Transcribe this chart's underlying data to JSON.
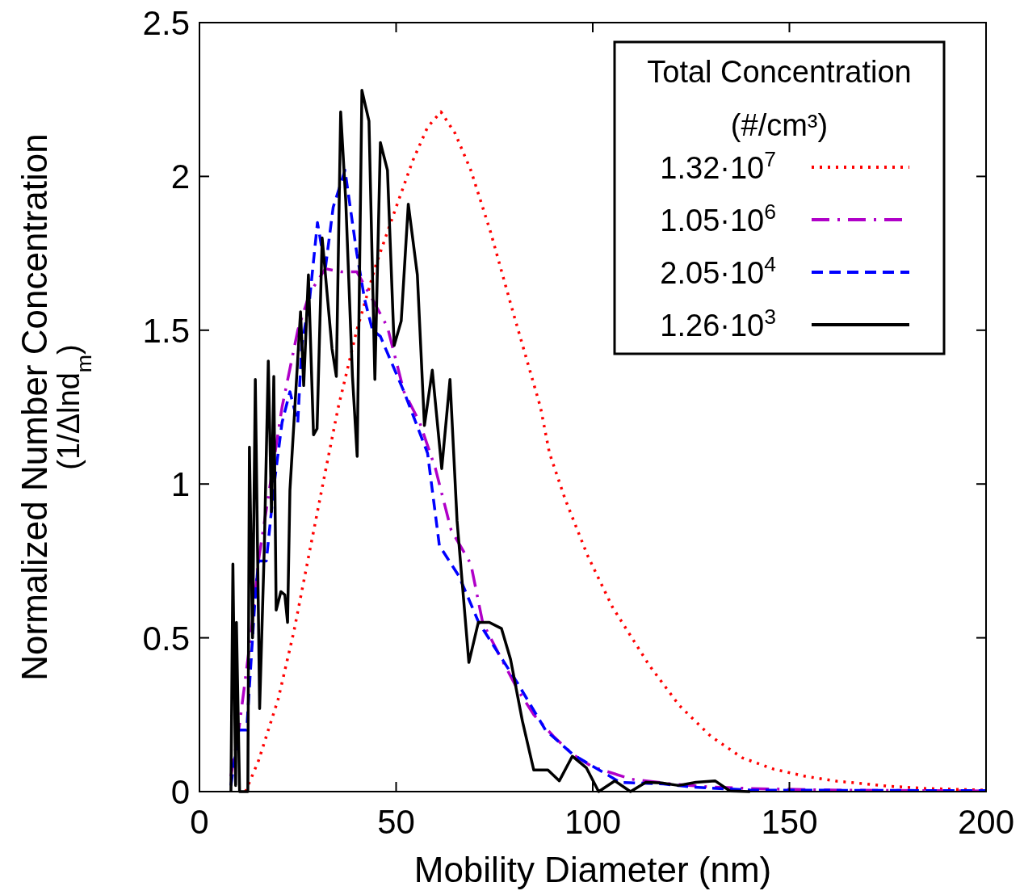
{
  "chart_data": {
    "type": "line",
    "xlabel": "Mobility Diameter (nm)",
    "ylabel": "Normalized Number Concentration (1/Δlnd$_{m}$)",
    "legend_title": "Total Concentration (#/cm³)",
    "legend": "top right",
    "grid": false,
    "xlim": [
      0,
      200
    ],
    "ylim": [
      0,
      2.5
    ],
    "xticks": [
      0,
      50,
      100,
      150,
      200
    ],
    "yticks": [
      0,
      0.5,
      1,
      1.5,
      2,
      2.5
    ],
    "series": [
      {
        "name": "1.32·10$^{7}$",
        "color": "#ff0000",
        "line_style": "dotted",
        "x": [
          11.7,
          15,
          20,
          24,
          28.3,
          32,
          35.3,
          40,
          44.8,
          50,
          54.2,
          58,
          61.4,
          65,
          69,
          74,
          79.7,
          86.7,
          89,
          93,
          98.6,
          105,
          114.4,
          122,
          130,
          138,
          146,
          154,
          162,
          175,
          185,
          200
        ],
        "values": [
          0,
          0.1,
          0.3,
          0.52,
          0.8,
          1.04,
          1.25,
          1.5,
          1.71,
          1.9,
          2.05,
          2.16,
          2.21,
          2.14,
          2.02,
          1.82,
          1.56,
          1.25,
          1.1,
          0.95,
          0.77,
          0.6,
          0.41,
          0.28,
          0.18,
          0.11,
          0.073,
          0.05,
          0.034,
          0.018,
          0.01,
          0.005
        ]
      },
      {
        "name": "1.05·10$^{6}$",
        "color": "#b000c8",
        "line_style": "dashdot",
        "x": [
          8,
          10,
          13,
          15,
          18,
          21,
          25,
          28,
          32,
          36,
          40,
          44,
          47.8,
          52,
          56,
          60,
          64,
          69,
          72,
          76,
          81,
          85,
          90,
          95,
          100,
          110,
          120,
          130,
          140,
          160,
          200
        ],
        "values": [
          0.05,
          0.2,
          0.5,
          0.75,
          1,
          1.25,
          1.5,
          1.62,
          1.7,
          1.69,
          1.69,
          1.6,
          1.51,
          1.3,
          1.2,
          1.05,
          0.85,
          0.74,
          0.55,
          0.45,
          0.33,
          0.25,
          0.18,
          0.12,
          0.08,
          0.04,
          0.025,
          0.015,
          0.01,
          0.005,
          0.002
        ]
      },
      {
        "name": "2.05·10$^{4}$",
        "color": "#0000ff",
        "line_style": "dashed",
        "x": [
          8,
          10,
          12,
          14,
          15,
          17,
          19,
          21,
          23,
          25,
          26,
          28,
          30,
          32,
          34,
          37,
          40,
          42,
          44,
          46,
          52,
          58,
          61,
          66,
          71,
          76,
          81,
          88,
          95,
          103,
          107,
          118,
          125,
          140,
          200
        ],
        "values": [
          0.02,
          0.2,
          0.2,
          0.6,
          0.75,
          0.75,
          1,
          1.2,
          1.3,
          1.2,
          1.45,
          1.6,
          1.85,
          1.7,
          1.9,
          2.02,
          1.75,
          1.6,
          1.5,
          1.48,
          1.3,
          1.1,
          0.8,
          0.7,
          0.55,
          0.45,
          0.35,
          0.2,
          0.12,
          0.06,
          0.03,
          0.025,
          0.015,
          0.005,
          0.003
        ]
      },
      {
        "name": "1.26·10$^{3}$",
        "color": "#000000",
        "line_style": "solid",
        "x": [
          8,
          8.5,
          9.2,
          9.4,
          10.2,
          12.3,
          12.7,
          13.5,
          14.2,
          15.3,
          16.5,
          17.5,
          18.3,
          18.9,
          19.5,
          20.7,
          21.7,
          22.4,
          23,
          25.7,
          26.5,
          27.7,
          29,
          29.9,
          31.2,
          33.7,
          34.8,
          35.9,
          37.2,
          38.9,
          40.1,
          41.3,
          43.1,
          44.6,
          46,
          47.8,
          49.5,
          51.3,
          53.1,
          55.4,
          57.2,
          59.2,
          61.6,
          63.7,
          65.5,
          68.5,
          70.9,
          73.7,
          76.8,
          79.1,
          82.1,
          85,
          88.6,
          91.5,
          94.8,
          98.4,
          101.5,
          105.6,
          109.6,
          113.5,
          117.5,
          121.8,
          126.2,
          131.1,
          134.9,
          140
        ],
        "values": [
          0,
          0.74,
          0.02,
          0.55,
          0,
          0,
          1.12,
          0.5,
          1.34,
          0.27,
          0.8,
          1.4,
          0.91,
          1.35,
          0.59,
          0.65,
          0.64,
          0.55,
          0.98,
          1.56,
          1.32,
          1.68,
          1.16,
          1.18,
          1.8,
          1.44,
          1.35,
          2.21,
          1.92,
          1.35,
          1.09,
          2.28,
          2.18,
          1.34,
          2.11,
          2.02,
          1.45,
          1.53,
          1.91,
          1.68,
          1.19,
          1.37,
          1.05,
          1.34,
          0.88,
          0.42,
          0.55,
          0.55,
          0.53,
          0.43,
          0.23,
          0.07,
          0.07,
          0.035,
          0.115,
          0.077,
          0,
          0.035,
          0,
          0.03,
          0.028,
          0.02,
          0.03,
          0.035,
          0.002,
          0
        ]
      }
    ]
  }
}
